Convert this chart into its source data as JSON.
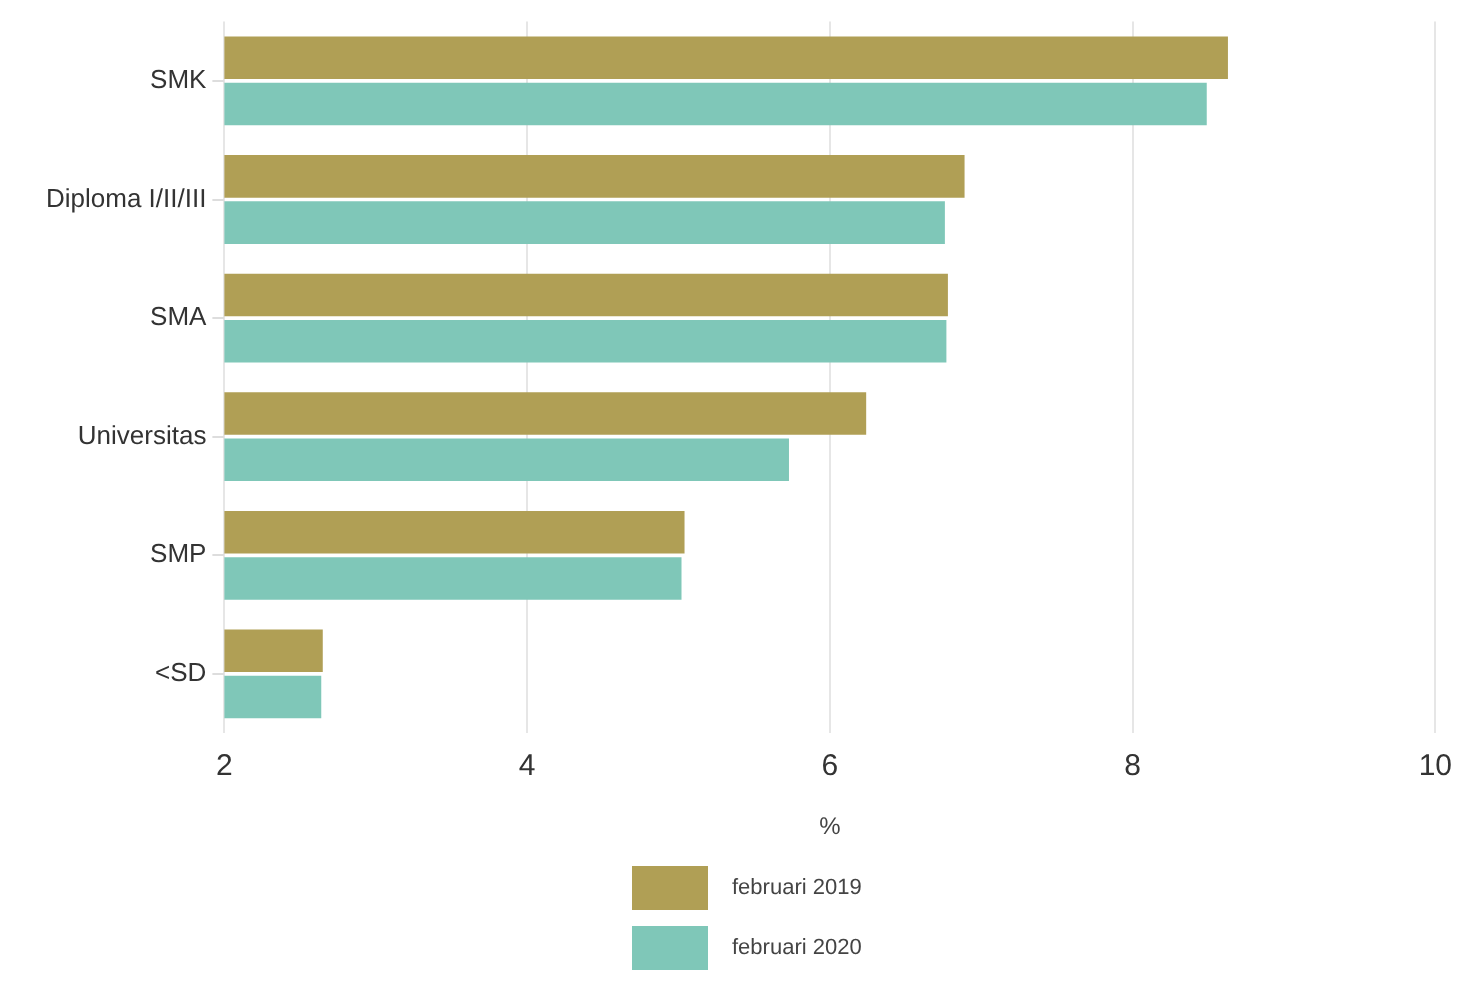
{
  "chart_data": {
    "type": "bar",
    "orientation": "horizontal",
    "xlabel": "%",
    "categories": [
      "SMK",
      "Diploma I/II/III",
      "SMA",
      "Universitas",
      "SMP",
      "<SD"
    ],
    "series": [
      {
        "name": "februari 2019",
        "color": "#b09f55",
        "values": [
          8.63,
          6.89,
          6.78,
          6.24,
          5.04,
          2.65
        ]
      },
      {
        "name": "februari 2020",
        "color": "#7fc7b8",
        "values": [
          8.49,
          6.76,
          6.77,
          5.73,
          5.02,
          2.64
        ]
      }
    ],
    "xlim": [
      2,
      10
    ],
    "xticks": [
      2,
      4,
      6,
      8,
      10
    ],
    "grid": "x",
    "legend": "bottom"
  }
}
